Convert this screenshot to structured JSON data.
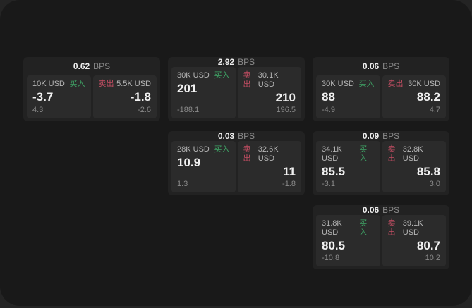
{
  "labels": {
    "unit": "BPS",
    "buy": "买入",
    "sell": "卖出"
  },
  "colors": {
    "buy": "#3fa566",
    "sell": "#c44e63"
  },
  "cards": [
    {
      "col": 1,
      "row": 1,
      "bps": "0.62",
      "buy": {
        "size": "10K USD",
        "value": "-3.7",
        "delta": "4.3"
      },
      "sell": {
        "size": "5.5K USD",
        "value": "-1.8",
        "delta": "-2.6"
      }
    },
    {
      "col": 2,
      "row": 1,
      "bps": "2.92",
      "buy": {
        "size": "30K USD",
        "value": "201",
        "delta": "-188.1"
      },
      "sell": {
        "size": "30.1K USD",
        "value": "210",
        "delta": "196.5"
      }
    },
    {
      "col": 3,
      "row": 1,
      "bps": "0.06",
      "buy": {
        "size": "30K USD",
        "value": "88",
        "delta": "-4.9"
      },
      "sell": {
        "size": "30K USD",
        "value": "88.2",
        "delta": "4.7"
      }
    },
    {
      "col": 2,
      "row": 2,
      "bps": "0.03",
      "buy": {
        "size": "28K USD",
        "value": "10.9",
        "delta": "1.3"
      },
      "sell": {
        "size": "32.6K USD",
        "value": "11",
        "delta": "-1.8"
      }
    },
    {
      "col": 3,
      "row": 2,
      "bps": "0.09",
      "buy": {
        "size": "34.1K USD",
        "value": "85.5",
        "delta": "-3.1"
      },
      "sell": {
        "size": "32.8K USD",
        "value": "85.8",
        "delta": "3.0"
      }
    },
    {
      "col": 3,
      "row": 3,
      "bps": "0.06",
      "buy": {
        "size": "31.8K USD",
        "value": "80.5",
        "delta": "-10.8"
      },
      "sell": {
        "size": "39.1K USD",
        "value": "80.7",
        "delta": "10.2"
      }
    }
  ]
}
